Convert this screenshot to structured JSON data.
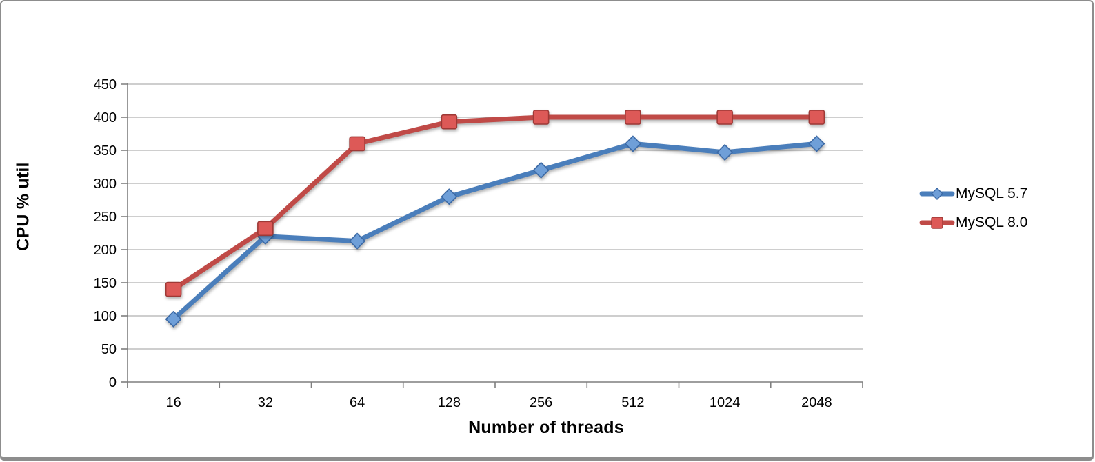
{
  "window": {
    "background": "#ffffff",
    "frame_border_color": "#8d8d8d"
  },
  "chart_data": {
    "type": "line",
    "title": "",
    "xlabel": "Number of threads",
    "ylabel": "CPU % util",
    "categories": [
      "16",
      "32",
      "64",
      "128",
      "256",
      "512",
      "1024",
      "2048"
    ],
    "series": [
      {
        "name": "MySQL 5.7",
        "marker": "diamond",
        "line_color": "#4a7ebb",
        "marker_fill": "#6f9fd8",
        "marker_stroke": "#3b69a5",
        "values": [
          95,
          220,
          213,
          280,
          320,
          360,
          347,
          360
        ]
      },
      {
        "name": "MySQL 8.0",
        "marker": "square",
        "line_color": "#c04a47",
        "marker_fill": "#dd5957",
        "marker_stroke": "#9e3936",
        "values": [
          140,
          232,
          360,
          393,
          400,
          400,
          400,
          400
        ]
      }
    ],
    "y_axis": {
      "min": 0,
      "max": 450,
      "step": 50,
      "tick_labels": [
        "0",
        "50",
        "100",
        "150",
        "200",
        "250",
        "300",
        "350",
        "400",
        "450"
      ]
    },
    "grid": true,
    "legend_position": "right",
    "gridline_color": "#9d9d9d",
    "axis_color": "#7f7f7f",
    "text_color": "#000000",
    "tick_font_size": 20
  }
}
